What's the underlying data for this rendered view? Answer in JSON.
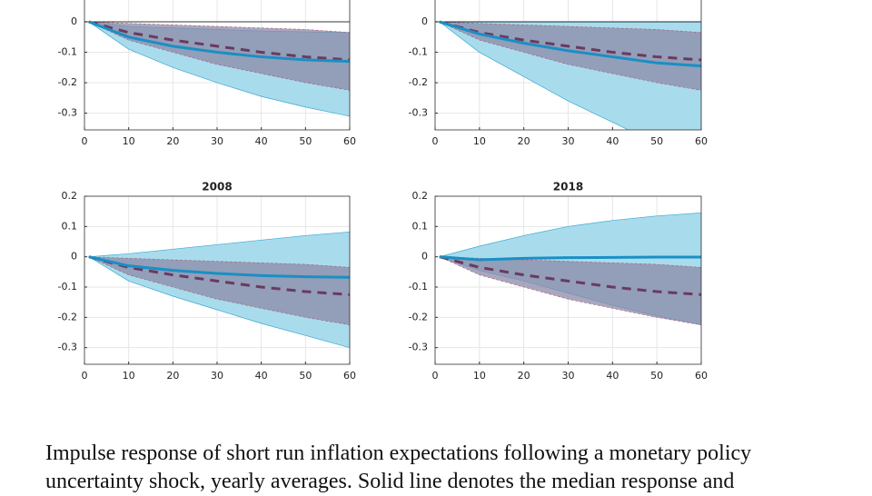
{
  "chart_data": [
    {
      "type": "line",
      "x": [
        1,
        10,
        20,
        30,
        40,
        50,
        60
      ],
      "xlim": [
        0,
        60
      ],
      "xticks": [
        0,
        10,
        20,
        30,
        40,
        50,
        60
      ],
      "ylim": [
        -0.355,
        0.2
      ],
      "yticks": [
        -0.3,
        -0.2,
        -0.1,
        0
      ],
      "grid": true,
      "zero_line": true,
      "bands": [
        {
          "color": "#a8dcec",
          "lower": [
            0,
            -0.09,
            -0.15,
            -0.2,
            -0.245,
            -0.28,
            -0.31
          ],
          "upper": [
            0,
            -0.015,
            -0.02,
            -0.025,
            -0.03,
            -0.033,
            -0.035
          ]
        },
        {
          "color": "#8c8aa8",
          "lower": [
            0,
            -0.06,
            -0.1,
            -0.14,
            -0.17,
            -0.2,
            -0.225
          ],
          "upper": [
            0,
            -0.005,
            -0.01,
            -0.015,
            -0.02,
            -0.025,
            -0.035
          ]
        }
      ],
      "series": [
        {
          "color": "#6b3a5e",
          "dash": true,
          "values": [
            0,
            -0.035,
            -0.06,
            -0.08,
            -0.1,
            -0.115,
            -0.125
          ]
        },
        {
          "color": "#1a8fc4",
          "dash": false,
          "values": [
            0,
            -0.05,
            -0.08,
            -0.1,
            -0.115,
            -0.125,
            -0.13
          ]
        }
      ]
    },
    {
      "type": "line",
      "x": [
        1,
        10,
        20,
        30,
        40,
        50,
        60
      ],
      "xlim": [
        0,
        60
      ],
      "xticks": [
        0,
        10,
        20,
        30,
        40,
        50,
        60
      ],
      "ylim": [
        -0.355,
        0.2
      ],
      "yticks": [
        -0.3,
        -0.2,
        -0.1,
        0
      ],
      "grid": true,
      "zero_line": true,
      "bands": [
        {
          "color": "#a8dcec",
          "lower": [
            0,
            -0.1,
            -0.18,
            -0.26,
            -0.33,
            -0.4,
            -0.46
          ],
          "upper": [
            0,
            0,
            0,
            0,
            0,
            0,
            0
          ]
        },
        {
          "color": "#8c8aa8",
          "lower": [
            0,
            -0.06,
            -0.1,
            -0.14,
            -0.17,
            -0.2,
            -0.225
          ],
          "upper": [
            0,
            -0.005,
            -0.01,
            -0.015,
            -0.02,
            -0.025,
            -0.035
          ]
        }
      ],
      "series": [
        {
          "color": "#6b3a5e",
          "dash": true,
          "values": [
            0,
            -0.035,
            -0.06,
            -0.08,
            -0.1,
            -0.115,
            -0.125
          ]
        },
        {
          "color": "#1a8fc4",
          "dash": false,
          "values": [
            0,
            -0.04,
            -0.07,
            -0.095,
            -0.115,
            -0.135,
            -0.145
          ]
        }
      ]
    },
    {
      "type": "line",
      "title": "2008",
      "x": [
        1,
        10,
        20,
        30,
        40,
        50,
        60
      ],
      "xlim": [
        0,
        60
      ],
      "xticks": [
        0,
        10,
        20,
        30,
        40,
        50,
        60
      ],
      "ylim": [
        -0.355,
        0.2
      ],
      "yticks": [
        -0.3,
        -0.2,
        -0.1,
        0,
        0.1,
        0.2
      ],
      "grid": true,
      "zero_line": false,
      "bands": [
        {
          "color": "#a8dcec",
          "lower": [
            0,
            -0.08,
            -0.13,
            -0.175,
            -0.22,
            -0.26,
            -0.3
          ],
          "upper": [
            0,
            0.01,
            0.025,
            0.04,
            0.055,
            0.07,
            0.082
          ]
        },
        {
          "color": "#8c8aa8",
          "lower": [
            0,
            -0.06,
            -0.1,
            -0.14,
            -0.17,
            -0.2,
            -0.225
          ],
          "upper": [
            0,
            -0.005,
            -0.01,
            -0.015,
            -0.02,
            -0.025,
            -0.035
          ]
        }
      ],
      "series": [
        {
          "color": "#6b3a5e",
          "dash": true,
          "values": [
            0,
            -0.035,
            -0.06,
            -0.08,
            -0.1,
            -0.115,
            -0.125
          ]
        },
        {
          "color": "#1a8fc4",
          "dash": false,
          "values": [
            0,
            -0.03,
            -0.045,
            -0.055,
            -0.062,
            -0.066,
            -0.068
          ]
        }
      ]
    },
    {
      "type": "line",
      "title": "2018",
      "x": [
        1,
        10,
        20,
        30,
        40,
        50,
        60
      ],
      "xlim": [
        0,
        60
      ],
      "xticks": [
        0,
        10,
        20,
        30,
        40,
        50,
        60
      ],
      "ylim": [
        -0.355,
        0.2
      ],
      "yticks": [
        -0.3,
        -0.2,
        -0.1,
        0,
        0.1,
        0.2
      ],
      "grid": true,
      "zero_line": false,
      "bands": [
        {
          "color": "#a8dcec",
          "lower": [
            0,
            -0.045,
            -0.08,
            -0.12,
            -0.16,
            -0.195,
            -0.225
          ],
          "upper": [
            0,
            0.035,
            0.07,
            0.1,
            0.12,
            0.135,
            0.145
          ]
        },
        {
          "color": "#8c8aa8",
          "lower": [
            0,
            -0.06,
            -0.1,
            -0.14,
            -0.17,
            -0.2,
            -0.225
          ],
          "upper": [
            0,
            -0.005,
            -0.01,
            -0.015,
            -0.02,
            -0.025,
            -0.035
          ]
        }
      ],
      "series": [
        {
          "color": "#6b3a5e",
          "dash": true,
          "values": [
            0,
            -0.035,
            -0.06,
            -0.08,
            -0.1,
            -0.115,
            -0.125
          ]
        },
        {
          "color": "#1a8fc4",
          "dash": false,
          "values": [
            0,
            -0.01,
            -0.005,
            -0.003,
            -0.002,
            -0.001,
            -0.001
          ]
        }
      ]
    }
  ],
  "caption": "Impulse response of short run inflation expectations following a monetary policy uncertainty shock, yearly averages. Solid line denotes the median response and"
}
